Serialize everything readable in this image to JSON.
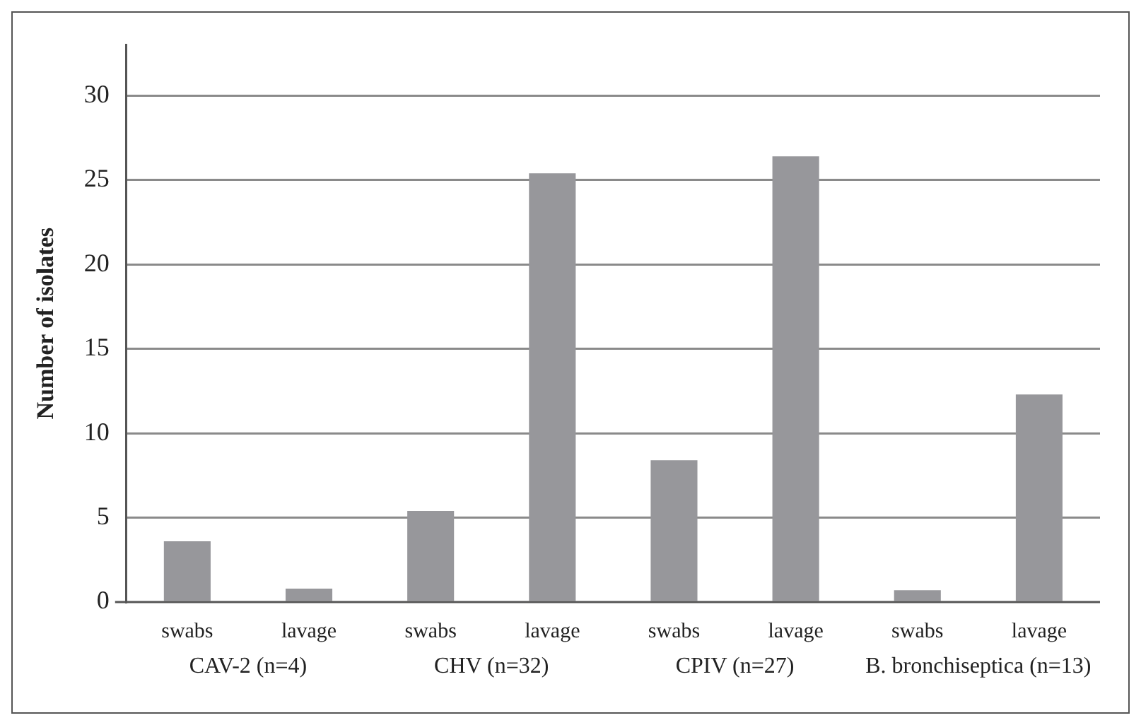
{
  "chart_data": {
    "type": "bar",
    "ylabel": "Number of isolates",
    "categories": [
      "swabs",
      "lavage",
      "swabs",
      "lavage",
      "swabs",
      "lavage",
      "swabs",
      "lavage"
    ],
    "values": [
      3.6,
      0.8,
      5.4,
      25.4,
      8.4,
      26.4,
      0.7,
      12.3
    ],
    "color": "#97979b",
    "ylim": [
      0,
      33
    ],
    "yticks": [
      0,
      5,
      10,
      15,
      20,
      25,
      30
    ],
    "grid": "y",
    "annotations": [
      "CAV-2 (n=4)",
      "CHV (n=32)",
      "CPIV (n=27)",
      "B. bronchiseptica (n=13)"
    ]
  }
}
